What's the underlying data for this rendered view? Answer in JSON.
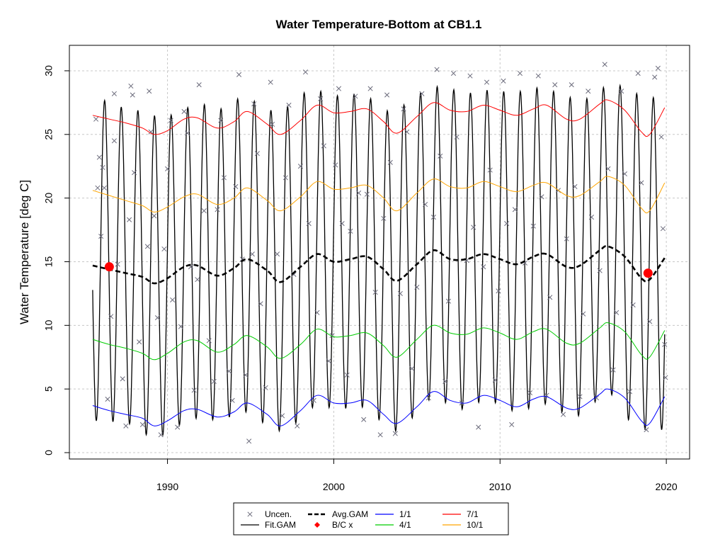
{
  "chart_data": {
    "type": "line",
    "title": "Water Temperature-Bottom at CB1.1",
    "ylabel": "Water Temperature [deg C]",
    "xlabel": "",
    "xlim": [
      1984.1,
      2021.4
    ],
    "ylim": [
      -0.5,
      32
    ],
    "xticks": [
      1990,
      2000,
      2010,
      2020
    ],
    "yticks": [
      0,
      5,
      10,
      15,
      20,
      25,
      30
    ],
    "grid": true,
    "legend_position": "bottom",
    "colors": {
      "uncen": "#6b6b7b",
      "fit": "#000000",
      "avg": "#000000",
      "bc": "#ff0000",
      "q1": "#0000ff",
      "q4": "#00cc00",
      "q7": "#ff0000",
      "q10": "#ffa500"
    },
    "legend": [
      {
        "key": "uncen",
        "label": "Uncen.",
        "kind": "cross"
      },
      {
        "key": "fit",
        "label": "Fit.GAM",
        "kind": "line"
      },
      {
        "key": "avg",
        "label": "Avg.GAM",
        "kind": "dashed"
      },
      {
        "key": "bc",
        "label": "B/C x",
        "kind": "diamond"
      },
      {
        "key": "q1",
        "label": "1/1",
        "kind": "line"
      },
      {
        "key": "q4",
        "label": "4/1",
        "kind": "line"
      },
      {
        "key": "q7",
        "label": "7/1",
        "kind": "line"
      },
      {
        "key": "q10",
        "label": "10/1",
        "kind": "line"
      }
    ],
    "year_range": [
      1985.5,
      2019.9
    ],
    "series": [
      {
        "name": "1/1",
        "x": [
          1985.5,
          1986.5,
          1987.5,
          1988.5,
          1989.2,
          1990.0,
          1991.0,
          1991.8,
          1993.0,
          1994.0,
          1994.8,
          1996.0,
          1996.8,
          1998.0,
          1999.0,
          2000.0,
          2001.0,
          2002.0,
          2003.0,
          2003.8,
          2005.0,
          2006.0,
          2007.0,
          2008.0,
          2009.0,
          2010.0,
          2011.0,
          2012.0,
          2012.8,
          2014.0,
          2014.8,
          2016.0,
          2016.5,
          2017.5,
          2018.5,
          2019.0,
          2019.9
        ],
        "values": [
          3.7,
          3.3,
          3.0,
          2.7,
          2.1,
          2.5,
          3.3,
          3.4,
          2.8,
          3.2,
          3.9,
          3.0,
          2.1,
          3.3,
          4.5,
          3.9,
          3.9,
          4.1,
          3.0,
          2.3,
          3.6,
          4.8,
          4.1,
          3.9,
          4.5,
          4.1,
          3.6,
          4.2,
          4.4,
          3.5,
          3.5,
          4.6,
          5.0,
          4.3,
          2.5,
          2.3,
          4.4
        ]
      },
      {
        "name": "4/1",
        "x": [
          1985.5,
          1986.5,
          1987.5,
          1988.5,
          1989.2,
          1990.0,
          1991.0,
          1991.8,
          1993.0,
          1994.0,
          1994.8,
          1996.0,
          1996.8,
          1998.0,
          1999.0,
          2000.0,
          2001.0,
          2002.0,
          2003.0,
          2003.8,
          2005.0,
          2006.0,
          2007.0,
          2008.0,
          2009.0,
          2010.0,
          2011.0,
          2012.0,
          2012.8,
          2014.0,
          2014.8,
          2016.0,
          2016.5,
          2017.5,
          2018.5,
          2019.0,
          2019.9
        ],
        "values": [
          8.9,
          8.5,
          8.2,
          7.8,
          7.3,
          7.8,
          8.7,
          8.8,
          7.9,
          8.5,
          9.2,
          8.3,
          7.4,
          8.5,
          9.7,
          9.1,
          9.2,
          9.4,
          8.4,
          7.5,
          8.9,
          10.0,
          9.4,
          9.3,
          9.8,
          9.4,
          8.9,
          9.5,
          9.7,
          8.6,
          8.6,
          9.8,
          10.2,
          9.5,
          7.7,
          7.5,
          9.6
        ]
      },
      {
        "name": "7/1",
        "x": [
          1985.5,
          1986.5,
          1987.5,
          1988.5,
          1989.2,
          1990.0,
          1991.0,
          1991.8,
          1993.0,
          1994.0,
          1994.8,
          1996.0,
          1996.8,
          1998.0,
          1999.0,
          2000.0,
          2001.0,
          2002.0,
          2003.0,
          2003.8,
          2005.0,
          2006.0,
          2007.0,
          2008.0,
          2009.0,
          2010.0,
          2011.0,
          2012.0,
          2012.8,
          2014.0,
          2014.8,
          2016.0,
          2016.5,
          2017.5,
          2018.5,
          2019.0,
          2019.9
        ],
        "values": [
          26.5,
          26.2,
          25.9,
          25.5,
          25.0,
          25.3,
          26.2,
          26.3,
          25.5,
          26.0,
          26.8,
          25.8,
          25.0,
          26.1,
          27.3,
          26.7,
          26.8,
          27.0,
          26.0,
          25.1,
          26.4,
          27.5,
          26.9,
          26.8,
          27.3,
          26.9,
          26.5,
          27.0,
          27.3,
          26.2,
          26.2,
          27.4,
          27.7,
          26.9,
          25.2,
          25.0,
          27.1
        ]
      },
      {
        "name": "10/1",
        "x": [
          1985.5,
          1986.5,
          1987.5,
          1988.5,
          1989.2,
          1990.0,
          1991.0,
          1991.8,
          1993.0,
          1994.0,
          1994.8,
          1996.0,
          1996.8,
          1998.0,
          1999.0,
          2000.0,
          2001.0,
          2002.0,
          2003.0,
          2003.8,
          2005.0,
          2006.0,
          2007.0,
          2008.0,
          2009.0,
          2010.0,
          2011.0,
          2012.0,
          2012.8,
          2014.0,
          2014.8,
          2016.0,
          2016.5,
          2017.5,
          2018.5,
          2019.0,
          2019.9
        ],
        "values": [
          20.6,
          20.2,
          19.8,
          19.4,
          18.9,
          19.3,
          20.1,
          20.3,
          19.5,
          20.0,
          20.8,
          19.8,
          19.0,
          20.1,
          21.3,
          20.7,
          20.8,
          21.0,
          20.0,
          19.0,
          20.4,
          21.5,
          20.9,
          20.8,
          21.3,
          20.9,
          20.5,
          21.0,
          21.2,
          20.2,
          20.2,
          21.3,
          21.7,
          21.0,
          19.2,
          19.0,
          21.2
        ]
      },
      {
        "name": "Avg.GAM",
        "x": [
          1985.5,
          1986.5,
          1987.5,
          1988.5,
          1989.2,
          1990.0,
          1991.0,
          1991.8,
          1993.0,
          1994.0,
          1994.8,
          1996.0,
          1996.8,
          1998.0,
          1999.0,
          2000.0,
          2001.0,
          2002.0,
          2003.0,
          2003.8,
          2005.0,
          2006.0,
          2007.0,
          2008.0,
          2009.0,
          2010.0,
          2011.0,
          2012.0,
          2012.8,
          2014.0,
          2014.8,
          2016.0,
          2016.5,
          2017.5,
          2018.5,
          2019.0,
          2019.9
        ],
        "values": [
          14.7,
          14.4,
          14.1,
          13.8,
          13.3,
          13.7,
          14.6,
          14.7,
          13.9,
          14.5,
          15.2,
          14.3,
          13.4,
          14.6,
          15.6,
          15.0,
          15.2,
          15.4,
          14.4,
          13.5,
          14.8,
          15.9,
          15.2,
          15.2,
          15.6,
          15.2,
          14.8,
          15.4,
          15.6,
          14.6,
          14.7,
          15.9,
          16.2,
          15.4,
          13.7,
          13.6,
          15.3
        ]
      },
      {
        "name": "B/C x",
        "x": [
          1986.5,
          2018.9
        ],
        "values": [
          14.6,
          14.1
        ]
      }
    ],
    "fit_gam": {
      "phase_years": 0.72,
      "annual": {
        "x": [
          1986.0,
          1987.0,
          1988.0,
          1989.0,
          1990.0,
          1991.0,
          1992.0,
          1993.0,
          1994.0,
          1995.0,
          1996.0,
          1997.0,
          1998.0,
          1999.0,
          2000.0,
          2001.0,
          2002.0,
          2003.0,
          2004.0,
          2005.0,
          2006.0,
          2007.0,
          2008.0,
          2009.0,
          2010.0,
          2011.0,
          2012.0,
          2013.0,
          2014.0,
          2015.0,
          2016.0,
          2017.0,
          2018.0,
          2019.0
        ],
        "max": [
          27.8,
          27.2,
          27.0,
          26.5,
          26.4,
          27.0,
          27.5,
          26.8,
          27.8,
          27.8,
          26.9,
          26.9,
          28.2,
          28.5,
          28.0,
          28.2,
          28.1,
          26.8,
          27.1,
          28.1,
          28.8,
          28.6,
          28.2,
          28.5,
          28.4,
          28.3,
          28.7,
          28.5,
          28.0,
          27.6,
          28.6,
          29.0,
          28.3,
          27.9
        ],
        "min": [
          2.5,
          2.4,
          2.2,
          1.1,
          1.5,
          2.4,
          2.8,
          2.5,
          2.9,
          3.3,
          2.0,
          1.6,
          2.6,
          3.9,
          3.4,
          3.5,
          3.6,
          2.2,
          1.5,
          3.2,
          4.5,
          3.7,
          3.3,
          4.2,
          3.8,
          3.1,
          3.6,
          3.9,
          2.9,
          2.9,
          4.4,
          4.6,
          1.8,
          1.8
        ]
      }
    },
    "uncen_points": [
      [
        1985.7,
        26.2
      ],
      [
        1985.8,
        20.8
      ],
      [
        1985.9,
        23.2
      ],
      [
        1986.0,
        17.0
      ],
      [
        1986.1,
        22.4
      ],
      [
        1986.2,
        20.8
      ],
      [
        1986.4,
        4.2
      ],
      [
        1986.6,
        10.7
      ],
      [
        1986.8,
        28.2
      ],
      [
        1986.8,
        24.5
      ],
      [
        1987.0,
        14.8
      ],
      [
        1987.3,
        5.8
      ],
      [
        1987.5,
        2.1
      ],
      [
        1987.7,
        18.3
      ],
      [
        1987.8,
        28.8
      ],
      [
        1987.9,
        28.1
      ],
      [
        1988.0,
        22.0
      ],
      [
        1988.3,
        8.7
      ],
      [
        1988.5,
        2.2
      ],
      [
        1988.8,
        16.2
      ],
      [
        1988.9,
        28.4
      ],
      [
        1989.0,
        25.2
      ],
      [
        1989.2,
        18.6
      ],
      [
        1989.4,
        10.6
      ],
      [
        1989.6,
        1.4
      ],
      [
        1989.8,
        16.0
      ],
      [
        1990.0,
        22.3
      ],
      [
        1990.2,
        26.1
      ],
      [
        1990.3,
        12.0
      ],
      [
        1990.6,
        2.0
      ],
      [
        1990.8,
        9.9
      ],
      [
        1991.0,
        26.8
      ],
      [
        1991.2,
        25.1
      ],
      [
        1991.4,
        14.6
      ],
      [
        1991.6,
        4.9
      ],
      [
        1991.8,
        13.6
      ],
      [
        1991.9,
        28.9
      ],
      [
        1992.2,
        19.0
      ],
      [
        1992.5,
        8.8
      ],
      [
        1992.8,
        5.6
      ],
      [
        1993.0,
        19.1
      ],
      [
        1993.2,
        26.1
      ],
      [
        1993.4,
        21.6
      ],
      [
        1993.7,
        6.4
      ],
      [
        1993.9,
        4.1
      ],
      [
        1994.1,
        20.9
      ],
      [
        1994.3,
        29.7
      ],
      [
        1994.5,
        15.2
      ],
      [
        1994.7,
        6.1
      ],
      [
        1994.9,
        0.9
      ],
      [
        1995.1,
        15.6
      ],
      [
        1995.2,
        27.4
      ],
      [
        1995.4,
        23.5
      ],
      [
        1995.6,
        11.7
      ],
      [
        1995.9,
        5.1
      ],
      [
        1996.2,
        29.1
      ],
      [
        1996.3,
        25.8
      ],
      [
        1996.6,
        15.6
      ],
      [
        1996.9,
        2.9
      ],
      [
        1997.1,
        21.6
      ],
      [
        1997.3,
        27.3
      ],
      [
        1997.6,
        14.0
      ],
      [
        1997.8,
        2.1
      ],
      [
        1998.0,
        22.5
      ],
      [
        1998.3,
        29.9
      ],
      [
        1998.5,
        18.0
      ],
      [
        1998.8,
        4.1
      ],
      [
        1999.0,
        11.0
      ],
      [
        1999.2,
        27.8
      ],
      [
        1999.4,
        24.1
      ],
      [
        1999.7,
        7.2
      ],
      [
        1999.9,
        9.2
      ],
      [
        2000.1,
        22.6
      ],
      [
        2000.3,
        28.6
      ],
      [
        2000.5,
        18.0
      ],
      [
        2000.8,
        6.1
      ],
      [
        2001.0,
        17.4
      ],
      [
        2001.3,
        28.0
      ],
      [
        2001.5,
        20.4
      ],
      [
        2001.8,
        2.6
      ],
      [
        2002.0,
        20.3
      ],
      [
        2002.2,
        28.6
      ],
      [
        2002.5,
        12.6
      ],
      [
        2002.8,
        1.4
      ],
      [
        2003.0,
        18.4
      ],
      [
        2003.2,
        28.1
      ],
      [
        2003.4,
        22.8
      ],
      [
        2003.7,
        1.5
      ],
      [
        2004.0,
        12.5
      ],
      [
        2004.2,
        27.0
      ],
      [
        2004.4,
        25.2
      ],
      [
        2004.7,
        6.6
      ],
      [
        2005.0,
        13.0
      ],
      [
        2005.3,
        28.2
      ],
      [
        2005.5,
        19.5
      ],
      [
        2005.7,
        4.3
      ],
      [
        2006.0,
        18.5
      ],
      [
        2006.2,
        30.1
      ],
      [
        2006.4,
        23.3
      ],
      [
        2006.7,
        5.6
      ],
      [
        2006.9,
        11.9
      ],
      [
        2007.2,
        29.8
      ],
      [
        2007.4,
        24.8
      ],
      [
        2007.7,
        3.9
      ],
      [
        2008.0,
        15.1
      ],
      [
        2008.2,
        29.6
      ],
      [
        2008.4,
        17.7
      ],
      [
        2008.7,
        2.0
      ],
      [
        2009.0,
        14.6
      ],
      [
        2009.2,
        29.1
      ],
      [
        2009.4,
        22.2
      ],
      [
        2009.7,
        5.7
      ],
      [
        2009.9,
        12.7
      ],
      [
        2010.2,
        29.2
      ],
      [
        2010.4,
        18.0
      ],
      [
        2010.7,
        2.2
      ],
      [
        2010.9,
        19.1
      ],
      [
        2011.2,
        29.8
      ],
      [
        2011.5,
        14.9
      ],
      [
        2011.8,
        4.7
      ],
      [
        2012.0,
        17.8
      ],
      [
        2012.3,
        29.6
      ],
      [
        2012.5,
        20.1
      ],
      [
        2012.8,
        4.5
      ],
      [
        2013.0,
        12.2
      ],
      [
        2013.3,
        28.9
      ],
      [
        2013.5,
        20.6
      ],
      [
        2013.8,
        3.0
      ],
      [
        2014.0,
        16.8
      ],
      [
        2014.3,
        28.9
      ],
      [
        2014.5,
        20.9
      ],
      [
        2014.8,
        4.4
      ],
      [
        2015.0,
        10.9
      ],
      [
        2015.3,
        28.4
      ],
      [
        2015.5,
        18.5
      ],
      [
        2015.8,
        4.3
      ],
      [
        2016.0,
        14.3
      ],
      [
        2016.3,
        30.5
      ],
      [
        2016.5,
        22.3
      ],
      [
        2016.8,
        6.5
      ],
      [
        2017.0,
        11.0
      ],
      [
        2017.3,
        28.4
      ],
      [
        2017.5,
        21.9
      ],
      [
        2017.8,
        4.8
      ],
      [
        2018.0,
        11.6
      ],
      [
        2018.3,
        29.8
      ],
      [
        2018.5,
        21.2
      ],
      [
        2018.8,
        1.8
      ],
      [
        2019.0,
        10.3
      ],
      [
        2019.3,
        29.5
      ],
      [
        2019.5,
        30.2
      ],
      [
        2019.7,
        24.8
      ],
      [
        2019.8,
        17.6
      ],
      [
        2019.9,
        8.5
      ],
      [
        2019.95,
        5.9
      ]
    ]
  }
}
